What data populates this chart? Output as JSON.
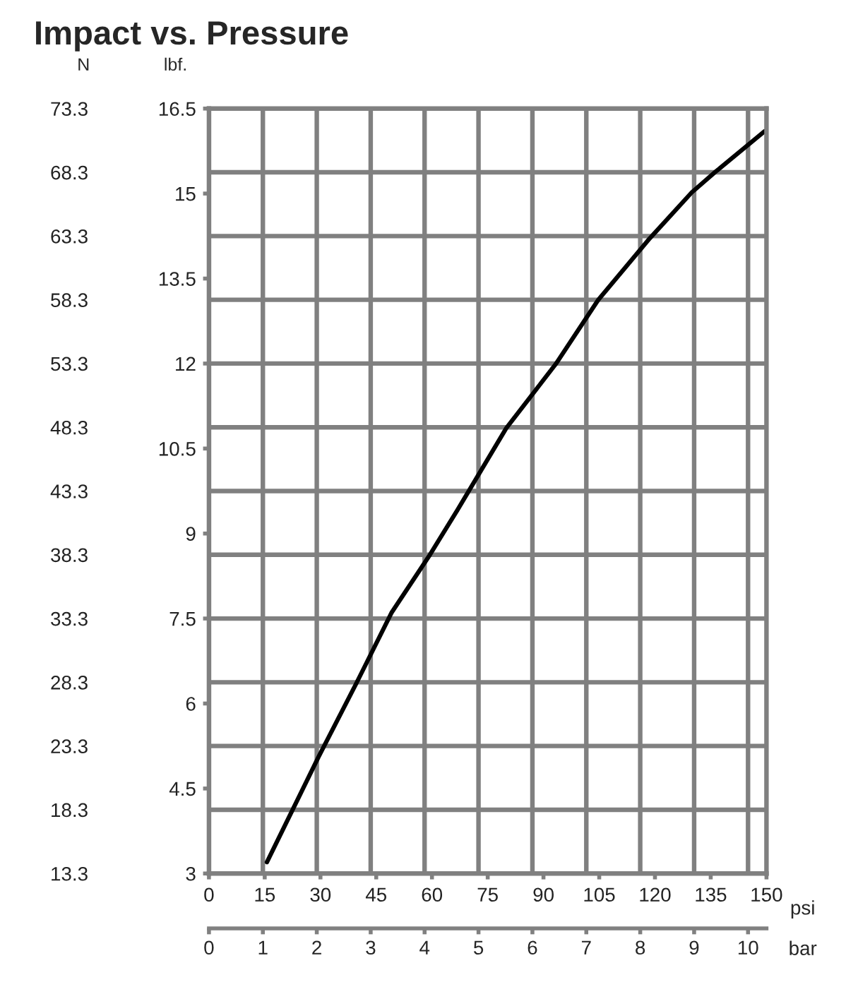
{
  "chart_data": {
    "type": "line",
    "title": "Impact vs. Pressure",
    "xlabel": "psi",
    "ylabel": "lbf.",
    "y2label": "N",
    "x2label": "bar",
    "x": [
      15.6,
      29.5,
      39.6,
      49.1,
      59.2,
      66.8,
      80.0,
      93.3,
      104.7,
      118.6,
      129.9,
      136.2,
      149.5
    ],
    "series": [
      {
        "color": "#000000",
        "values": [
          3.2,
          5.06,
          6.35,
          7.6,
          8.6,
          9.41,
          10.86,
          11.99,
          13.12,
          14.21,
          15.02,
          15.38,
          16.1
        ]
      }
    ],
    "xlim": [
      0,
      150
    ],
    "xticks": [
      0,
      15,
      30,
      45,
      60,
      75,
      90,
      105,
      120,
      135,
      150
    ],
    "ylim": [
      3,
      16.5
    ],
    "yticks": [
      3,
      4.5,
      6,
      7.5,
      9,
      10.5,
      12,
      13.5,
      15,
      16.5
    ],
    "y2lim": [
      13.3,
      73.3
    ],
    "y2ticks": [
      13.3,
      18.3,
      23.3,
      28.3,
      33.3,
      38.3,
      43.3,
      48.3,
      53.3,
      58.3,
      63.3,
      68.3,
      73.3
    ],
    "x2lim": [
      0,
      10.342
    ],
    "x2ticks": [
      0,
      1,
      2,
      3,
      4,
      5,
      6,
      7,
      8,
      9,
      10
    ],
    "grid": true,
    "marker": "none",
    "line_style": "solid",
    "legend": false
  }
}
